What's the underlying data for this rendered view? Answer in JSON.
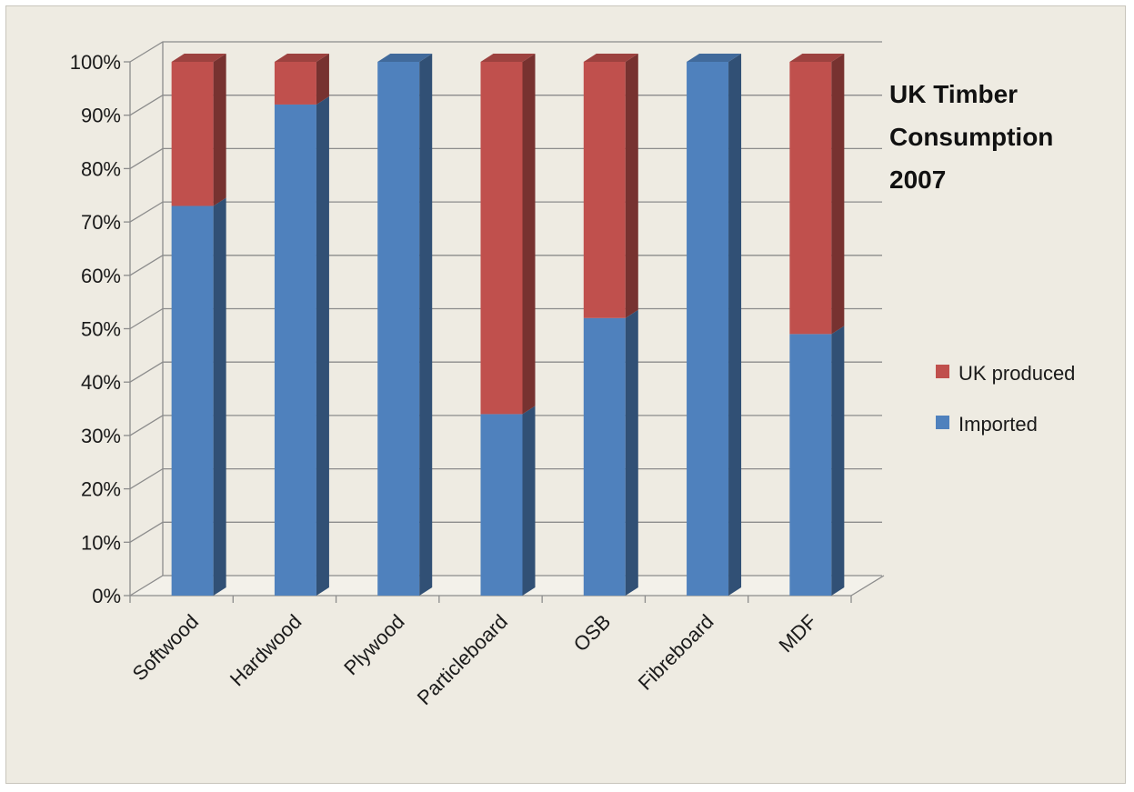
{
  "chart_data": {
    "type": "bar",
    "stacked": true,
    "percent": true,
    "three_d": true,
    "title_lines": [
      "UK Timber",
      "Consumption",
      "2007"
    ],
    "categories": [
      "Softwood",
      "Hardwood",
      "Plywood",
      "Particleboard",
      "OSB",
      "Fibreboard",
      "MDF"
    ],
    "series": [
      {
        "name": "Imported",
        "color": "#4f81bd",
        "values": [
          73,
          92,
          100,
          34,
          52,
          100,
          49
        ]
      },
      {
        "name": "UK produced",
        "color": "#c0504d",
        "values": [
          27,
          8,
          0,
          66,
          48,
          0,
          51
        ]
      }
    ],
    "y_ticks": [
      "0%",
      "10%",
      "20%",
      "30%",
      "40%",
      "50%",
      "60%",
      "70%",
      "80%",
      "90%",
      "100%"
    ],
    "ylim": [
      0,
      100
    ],
    "grid": true,
    "legend": {
      "position": "right",
      "items": [
        {
          "name": "UK produced",
          "color": "#c0504d"
        },
        {
          "name": "Imported",
          "color": "#4f81bd"
        }
      ]
    }
  }
}
